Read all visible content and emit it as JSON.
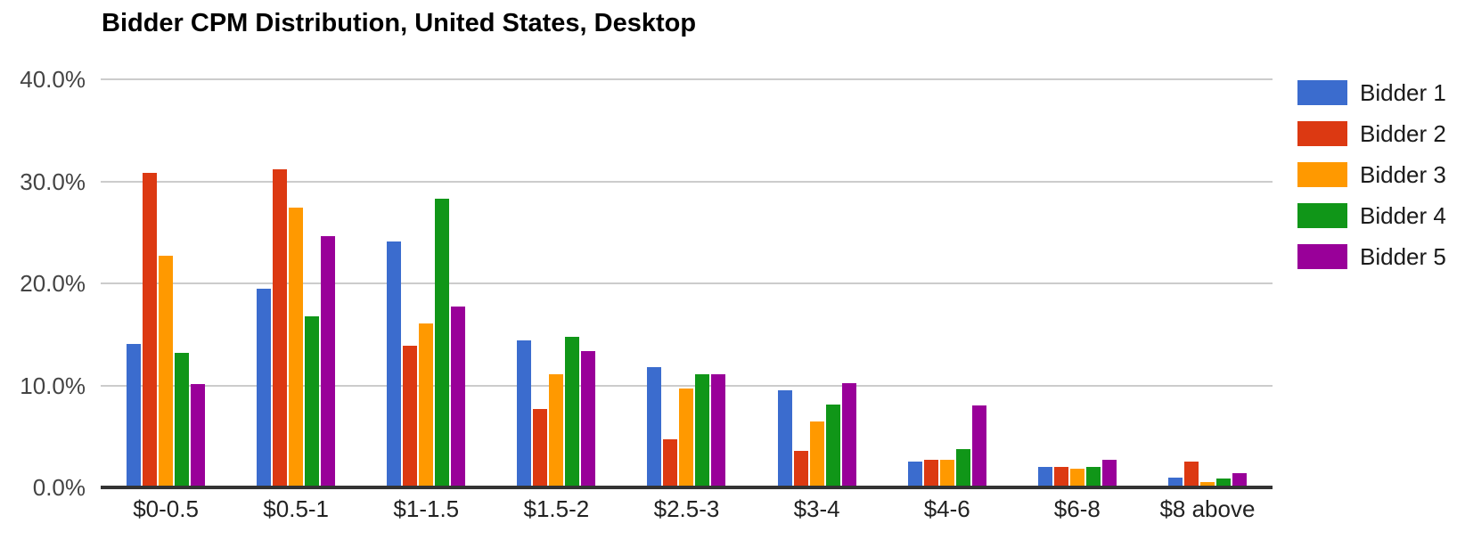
{
  "chart_data": {
    "type": "bar",
    "title": "Bidder CPM Distribution, United States, Desktop",
    "xlabel": "",
    "ylabel": "",
    "ylim": [
      0,
      40
    ],
    "grid": true,
    "legend_position": "right",
    "background_color": "#ffffff",
    "gridline_color": "#cccccc",
    "axis_line_color": "#333333",
    "categories": [
      "$0-0.5",
      "$0.5-1",
      "$1-1.5",
      "$1.5-2",
      "$2.5-3",
      "$3-4",
      "$4-6",
      "$6-8",
      "$8 above"
    ],
    "yticks": [
      {
        "value": 40,
        "label": "40.0%"
      },
      {
        "value": 30,
        "label": "30.0%"
      },
      {
        "value": 20,
        "label": "20.0%"
      },
      {
        "value": 10,
        "label": "10.0%"
      },
      {
        "value": 0,
        "label": "0.0%"
      }
    ],
    "series": [
      {
        "name": "Bidder 1",
        "color": "#3b6cce",
        "values": [
          14.1,
          19.5,
          24.1,
          14.4,
          11.8,
          9.5,
          2.5,
          2.0,
          1.0
        ]
      },
      {
        "name": "Bidder 2",
        "color": "#dc3912",
        "values": [
          30.8,
          31.2,
          13.9,
          7.7,
          4.7,
          3.6,
          2.7,
          2.0,
          2.5
        ]
      },
      {
        "name": "Bidder 3",
        "color": "#ff9900",
        "values": [
          22.7,
          27.4,
          16.1,
          11.1,
          9.7,
          6.5,
          2.7,
          1.8,
          0.5
        ]
      },
      {
        "name": "Bidder 4",
        "color": "#109618",
        "values": [
          13.2,
          16.8,
          28.3,
          14.8,
          11.1,
          8.1,
          3.8,
          2.0,
          0.9
        ]
      },
      {
        "name": "Bidder 5",
        "color": "#990099",
        "values": [
          10.1,
          24.6,
          17.7,
          13.4,
          11.1,
          10.2,
          8.0,
          2.7,
          1.4
        ]
      }
    ]
  }
}
